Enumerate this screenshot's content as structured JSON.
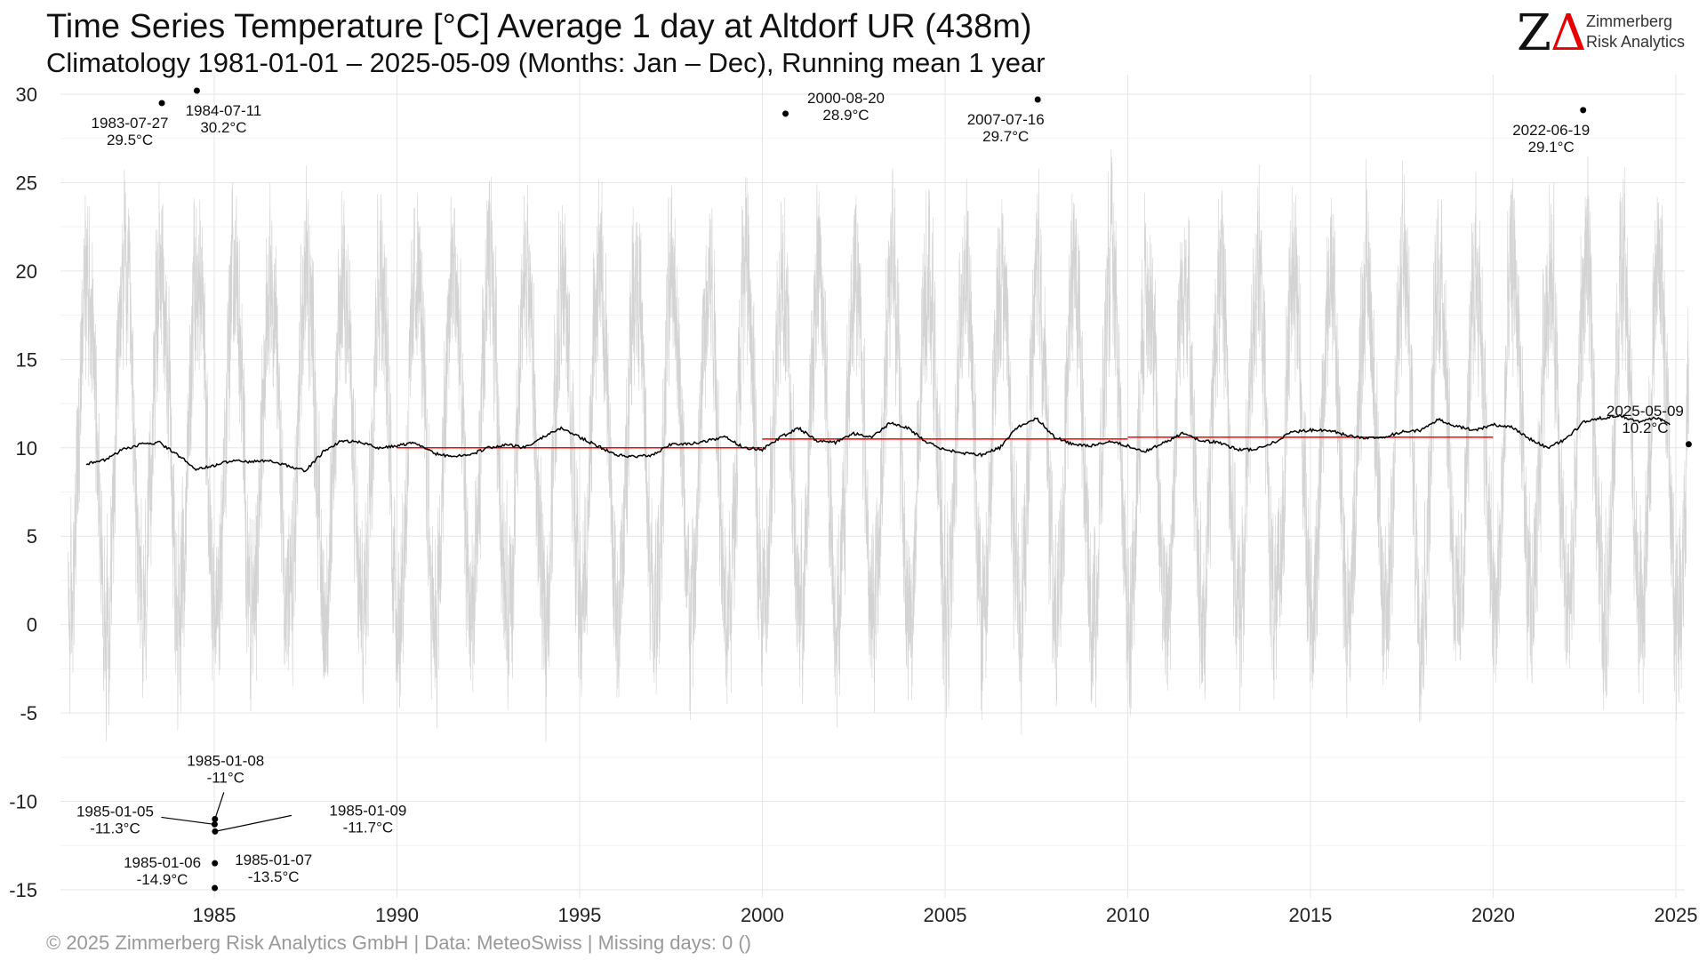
{
  "chart_data": {
    "type": "line",
    "title": "Time Series Temperature [°C] Average 1 day at Altdorf  UR (438m)",
    "subtitle": "Climatology 1981-01-01 – 2025-05-09 (Months: Jan – Dec), Running mean 1 year",
    "xlim": [
      "1981-01-01",
      "2025-05-09"
    ],
    "ylim": [
      -15,
      30
    ],
    "x_ticks": [
      "1985",
      "1990",
      "1995",
      "2000",
      "2005",
      "2010",
      "2015",
      "2020",
      "2025"
    ],
    "y_ticks": [
      "30",
      "25",
      "20",
      "15",
      "10",
      "5",
      "0",
      "-5",
      "-10",
      "-15"
    ],
    "grid": true,
    "series": [
      {
        "name": "",
        "kind": "daily-mean",
        "color": "#d3d3d3",
        "seasonal_cycle": {
          "mean": 10.3,
          "amplitude": 9.8,
          "noise": 4.5,
          "warmest_day_of_year": 200
        }
      },
      {
        "name": "",
        "kind": "running-mean-1-year",
        "color": "#000000",
        "points": [
          [
            "1981-07-01",
            9.1
          ],
          [
            "1982-01-01",
            9.3
          ],
          [
            "1982-07-01",
            9.9
          ],
          [
            "1983-01-01",
            10.2
          ],
          [
            "1983-07-01",
            10.3
          ],
          [
            "1984-01-01",
            9.6
          ],
          [
            "1984-07-01",
            8.8
          ],
          [
            "1985-01-01",
            9.0
          ],
          [
            "1985-07-01",
            9.3
          ],
          [
            "1986-01-01",
            9.2
          ],
          [
            "1986-07-01",
            9.3
          ],
          [
            "1987-01-01",
            9.0
          ],
          [
            "1987-07-01",
            8.7
          ],
          [
            "1988-01-01",
            9.8
          ],
          [
            "1988-07-01",
            10.4
          ],
          [
            "1989-01-01",
            10.3
          ],
          [
            "1989-07-01",
            10.0
          ],
          [
            "1990-01-01",
            10.1
          ],
          [
            "1990-07-01",
            10.3
          ],
          [
            "1991-01-01",
            9.7
          ],
          [
            "1991-07-01",
            9.5
          ],
          [
            "1992-01-01",
            9.6
          ],
          [
            "1992-07-01",
            10.0
          ],
          [
            "1993-01-01",
            10.2
          ],
          [
            "1993-07-01",
            10.0
          ],
          [
            "1994-01-01",
            10.6
          ],
          [
            "1994-07-01",
            11.1
          ],
          [
            "1995-01-01",
            10.6
          ],
          [
            "1995-07-01",
            10.1
          ],
          [
            "1996-01-01",
            9.6
          ],
          [
            "1996-07-01",
            9.5
          ],
          [
            "1997-01-01",
            9.6
          ],
          [
            "1997-07-01",
            10.2
          ],
          [
            "1998-01-01",
            10.2
          ],
          [
            "1998-07-01",
            10.4
          ],
          [
            "1999-01-01",
            10.6
          ],
          [
            "1999-07-01",
            10.0
          ],
          [
            "2000-01-01",
            9.9
          ],
          [
            "2000-07-01",
            10.6
          ],
          [
            "2001-01-01",
            11.1
          ],
          [
            "2001-07-01",
            10.4
          ],
          [
            "2002-01-01",
            10.3
          ],
          [
            "2002-07-01",
            10.8
          ],
          [
            "2003-01-01",
            10.6
          ],
          [
            "2003-07-01",
            11.4
          ],
          [
            "2004-01-01",
            11.1
          ],
          [
            "2004-07-01",
            10.3
          ],
          [
            "2005-01-01",
            9.9
          ],
          [
            "2005-07-01",
            9.7
          ],
          [
            "2006-01-01",
            9.6
          ],
          [
            "2006-07-01",
            10.0
          ],
          [
            "2007-01-01",
            11.2
          ],
          [
            "2007-07-01",
            11.7
          ],
          [
            "2008-01-01",
            10.6
          ],
          [
            "2008-07-01",
            10.2
          ],
          [
            "2009-01-01",
            10.1
          ],
          [
            "2009-07-01",
            10.4
          ],
          [
            "2010-01-01",
            10.1
          ],
          [
            "2010-07-01",
            9.8
          ],
          [
            "2011-01-01",
            10.3
          ],
          [
            "2011-07-01",
            10.8
          ],
          [
            "2012-01-01",
            10.4
          ],
          [
            "2012-07-01",
            10.3
          ],
          [
            "2013-01-01",
            9.9
          ],
          [
            "2013-07-01",
            9.9
          ],
          [
            "2014-01-01",
            10.3
          ],
          [
            "2014-07-01",
            10.9
          ],
          [
            "2015-01-01",
            11.0
          ],
          [
            "2015-07-01",
            11.0
          ],
          [
            "2016-01-01",
            10.7
          ],
          [
            "2016-07-01",
            10.5
          ],
          [
            "2017-01-01",
            10.6
          ],
          [
            "2017-07-01",
            10.9
          ],
          [
            "2018-01-01",
            11.0
          ],
          [
            "2018-07-01",
            11.6
          ],
          [
            "2019-01-01",
            11.2
          ],
          [
            "2019-07-01",
            11.0
          ],
          [
            "2020-01-01",
            11.3
          ],
          [
            "2020-07-01",
            11.2
          ],
          [
            "2021-01-01",
            10.5
          ],
          [
            "2021-07-01",
            10.0
          ],
          [
            "2022-01-01",
            10.5
          ],
          [
            "2022-07-01",
            11.5
          ],
          [
            "2023-01-01",
            11.7
          ],
          [
            "2023-07-01",
            11.8
          ],
          [
            "2024-01-01",
            11.5
          ],
          [
            "2024-07-01",
            11.7
          ],
          [
            "2024-11-01",
            11.3
          ]
        ]
      },
      {
        "name": "",
        "kind": "decade-mean",
        "color": "#ff0000",
        "segments": [
          {
            "from": "1990-01-01",
            "to": "1999-12-31",
            "value": 10.0
          },
          {
            "from": "2000-01-01",
            "to": "2009-12-31",
            "value": 10.5
          },
          {
            "from": "2010-01-01",
            "to": "2019-12-31",
            "value": 10.6
          }
        ]
      }
    ],
    "annotations": [
      {
        "date": "1983-07-27",
        "value": 29.5,
        "label": "1983-07-27",
        "sublabel": "29.5°C",
        "pos": "below-left"
      },
      {
        "date": "1984-07-11",
        "value": 30.2,
        "label": "1984-07-11",
        "sublabel": "30.2°C",
        "pos": "below-right"
      },
      {
        "date": "2000-08-20",
        "value": 28.9,
        "label": "2000-08-20",
        "sublabel": "28.9°C",
        "pos": "above-right"
      },
      {
        "date": "2007-07-16",
        "value": 29.7,
        "label": "2007-07-16",
        "sublabel": "29.7°C",
        "pos": "below-left"
      },
      {
        "date": "2022-06-19",
        "value": 29.1,
        "label": "2022-06-19",
        "sublabel": "29.1°C",
        "pos": "below-left"
      },
      {
        "date": "2025-05-09",
        "value": 10.2,
        "label": "2025-05-09",
        "sublabel": "10.2°C",
        "pos": "above-left"
      },
      {
        "date": "1985-01-05",
        "value": -11.3,
        "label": "1985-01-05",
        "sublabel": "-11.3°C",
        "pos": "leader-left"
      },
      {
        "date": "1985-01-06",
        "value": -14.9,
        "label": "1985-01-06",
        "sublabel": "-14.9°C",
        "pos": "above-left"
      },
      {
        "date": "1985-01-07",
        "value": -13.5,
        "label": "1985-01-07",
        "sublabel": "-13.5°C",
        "pos": "below-right"
      },
      {
        "date": "1985-01-08",
        "value": -11.0,
        "label": "1985-01-08",
        "sublabel": "-11°C",
        "pos": "leader-up"
      },
      {
        "date": "1985-01-09",
        "value": -11.7,
        "label": "1985-01-09",
        "sublabel": "-11.7°C",
        "pos": "leader-right"
      }
    ]
  },
  "logo": {
    "mark_z": "Z",
    "mark_delta": "Δ",
    "line1": "Zimmerberg",
    "line2": "Risk Analytics",
    "color_z": "#111111",
    "color_delta": "#e60000"
  },
  "footer": "©  2025 Zimmerberg Risk Analytics GmbH | Data: MeteoSwiss | Missing days: 0 ()"
}
